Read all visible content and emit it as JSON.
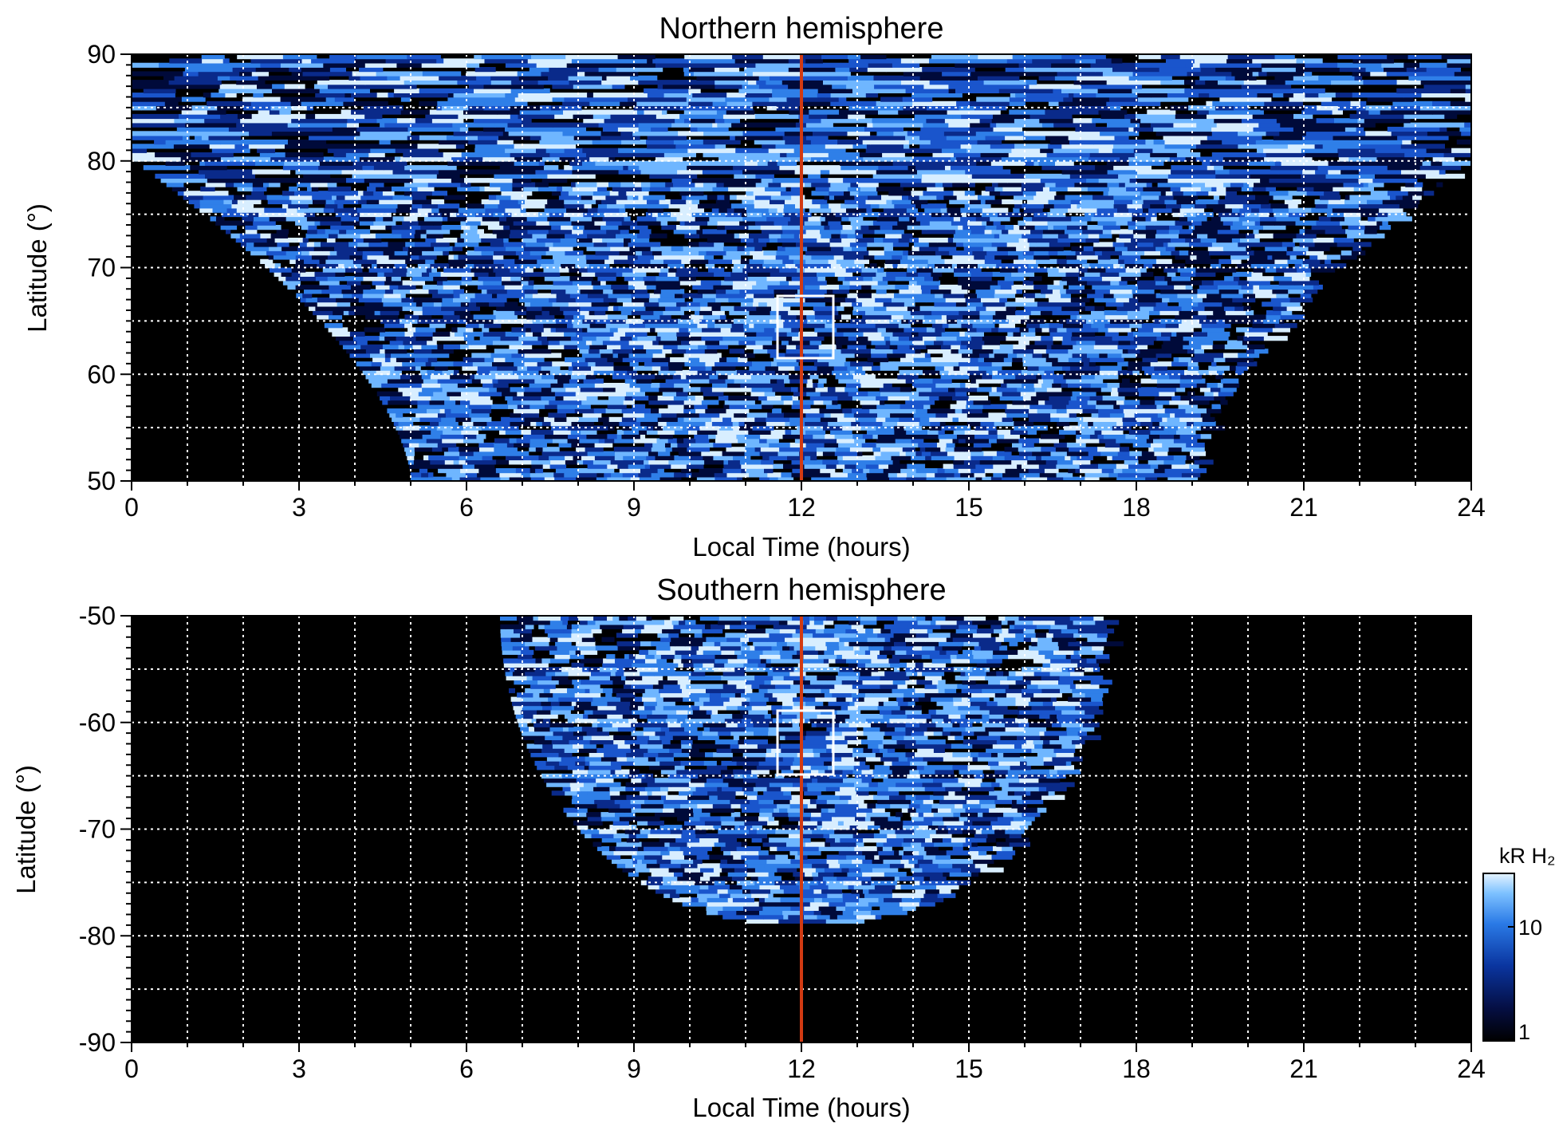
{
  "chart_data": [
    {
      "type": "heatmap",
      "title": "Northern hemisphere",
      "xlabel": "Local Time (hours)",
      "ylabel": "Latitude (°)",
      "xlim": [
        0,
        24
      ],
      "ylim": [
        50,
        90
      ],
      "x_ticks": [
        "0",
        "3",
        "6",
        "9",
        "12",
        "15",
        "18",
        "21",
        "24"
      ],
      "y_ticks": [
        "50",
        "60",
        "70",
        "80",
        "90"
      ],
      "grid": true,
      "noon_line_x": 12,
      "highlight_box": {
        "x": [
          11.65,
          12.6
        ],
        "y": [
          61.5,
          67.5
        ]
      },
      "coverage": {
        "x_at_lower_edge": [
          5,
          19
        ],
        "x_at_upper_edge": [
          0,
          24
        ]
      }
    },
    {
      "type": "heatmap",
      "title": "Southern hemisphere",
      "xlabel": "Local Time (hours)",
      "ylabel": "Latitude (°)",
      "xlim": [
        0,
        24
      ],
      "ylim": [
        -90,
        -50
      ],
      "x_ticks": [
        "0",
        "3",
        "6",
        "9",
        "12",
        "15",
        "18",
        "21",
        "24"
      ],
      "y_ticks": [
        "-50",
        "-60",
        "-70",
        "-80",
        "-90"
      ],
      "grid": true,
      "noon_line_x": 12,
      "highlight_box": {
        "x": [
          11.65,
          12.6
        ],
        "y": [
          -65,
          -59
        ]
      },
      "coverage": {
        "x_at_upper_edge": [
          7,
          17
        ],
        "lowest_latitude": -79
      }
    }
  ],
  "colorbar": {
    "label": "kR H₂",
    "ticks": [
      "10",
      "1"
    ],
    "scale": "log",
    "range": [
      1,
      30
    ]
  },
  "colors": {
    "background": "#000000",
    "grid": "#ffffff",
    "noon_line": "#d23a12",
    "map_colors": [
      "#000a3a",
      "#0a2a8a",
      "#1a55cc",
      "#2f7fe8",
      "#6fb6ff",
      "#d8eeff"
    ]
  }
}
